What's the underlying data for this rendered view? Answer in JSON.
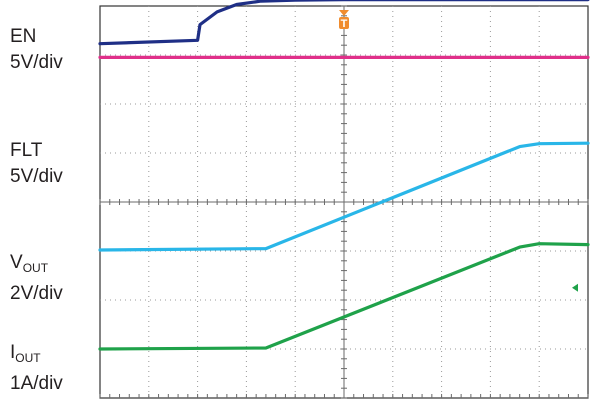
{
  "channels": [
    {
      "key": "en",
      "name": "EN",
      "sub": "",
      "scale": "5V/div",
      "color": "#1f2f86"
    },
    {
      "key": "flt",
      "name": "FLT",
      "sub": "",
      "scale": "5V/div",
      "color": "#e0308a"
    },
    {
      "key": "vout",
      "name": "V",
      "sub": "OUT",
      "scale": "2V/div",
      "color": "#29b6e8"
    },
    {
      "key": "iout",
      "name": "I",
      "sub": "OUT",
      "scale": "1A/div",
      "color": "#1fa24a"
    }
  ],
  "trigger_marker": {
    "label": "T",
    "color": "#f08c2e"
  },
  "chart_data": {
    "type": "line",
    "grid": true,
    "x_divisions": 10,
    "y_divisions": 8,
    "xlim": [
      0,
      10
    ],
    "ylim": [
      0,
      8
    ],
    "series": [
      {
        "name": "EN",
        "color": "#1f2f86",
        "x": [
          0,
          2.0,
          2.05,
          2.4,
          2.8,
          3.3,
          4.0,
          5.0,
          6.0,
          10.0
        ],
        "y": [
          7.23,
          7.3,
          7.62,
          7.88,
          8.03,
          8.1,
          8.12,
          8.13,
          8.13,
          8.13
        ]
      },
      {
        "name": "FLT",
        "color": "#e0308a",
        "x": [
          0,
          10.0
        ],
        "y": [
          6.95,
          6.95
        ]
      },
      {
        "name": "VOUT",
        "color": "#29b6e8",
        "x": [
          0,
          3.4,
          8.6,
          9.0,
          10.0
        ],
        "y": [
          3.02,
          3.05,
          5.13,
          5.19,
          5.2
        ]
      },
      {
        "name": "IOUT",
        "color": "#1fa24a",
        "x": [
          0,
          3.4,
          8.6,
          9.0,
          10.0
        ],
        "y": [
          1.0,
          1.02,
          3.08,
          3.15,
          3.13
        ]
      }
    ]
  }
}
